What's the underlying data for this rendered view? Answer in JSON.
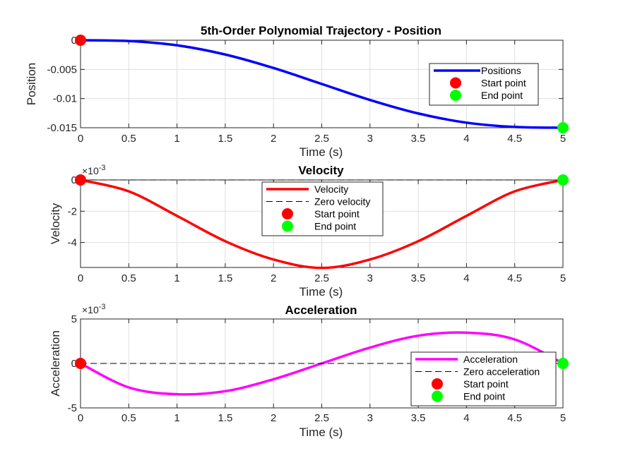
{
  "chart_data": [
    {
      "type": "line",
      "title": "5th-Order Polynomial Trajectory - Position",
      "xlabel": "Time (s)",
      "ylabel": "Position",
      "exponent_label": "",
      "xlim": [
        0,
        5
      ],
      "ylim": [
        -0.015,
        0
      ],
      "grid": true,
      "legend_position": "right",
      "x_ticks": [
        "0",
        "0.5",
        "1",
        "1.5",
        "2",
        "2.5",
        "3",
        "3.5",
        "4",
        "4.5",
        "5"
      ],
      "y_ticks": [
        {
          "value": 0,
          "label": "0"
        },
        {
          "value": -0.005,
          "label": "-0.005"
        },
        {
          "value": -0.01,
          "label": "-0.01"
        },
        {
          "value": -0.015,
          "label": "-0.015"
        }
      ],
      "series": [
        {
          "name": "Positions",
          "color": "#0000ff",
          "style": "solid",
          "x": [
            0,
            0.5,
            1,
            1.5,
            2,
            2.5,
            3,
            3.5,
            4,
            4.5,
            5
          ],
          "y": [
            0,
            -0.00013,
            -0.00087,
            -0.00245,
            -0.00476,
            -0.0075,
            -0.01024,
            -0.01255,
            -0.01413,
            -0.01487,
            -0.015
          ]
        }
      ],
      "markers": [
        {
          "name": "Start point",
          "color": "#ff0000",
          "x": 0,
          "y": 0
        },
        {
          "name": "End point",
          "color": "#00ff00",
          "x": 5,
          "y": -0.015
        }
      ]
    },
    {
      "type": "line",
      "title": "Velocity",
      "xlabel": "Time (s)",
      "ylabel": "Velocity",
      "exponent_label": "×10-3",
      "xlim": [
        0,
        5
      ],
      "ylim": [
        -5.6,
        0
      ],
      "grid": true,
      "legend_position": "top-center",
      "x_ticks": [
        "0",
        "0.5",
        "1",
        "1.5",
        "2",
        "2.5",
        "3",
        "3.5",
        "4",
        "4.5",
        "5"
      ],
      "y_ticks": [
        {
          "value": 0,
          "label": "0"
        },
        {
          "value": -2,
          "label": "-2"
        },
        {
          "value": -4,
          "label": "-4"
        }
      ],
      "series": [
        {
          "name": "Velocity",
          "color": "#ff0000",
          "style": "solid",
          "x": [
            0,
            0.5,
            1,
            1.5,
            2,
            2.5,
            3,
            3.5,
            4,
            4.5,
            5
          ],
          "y": [
            0,
            -0.73,
            -2.3,
            -3.92,
            -5.09,
            -5.63,
            -5.09,
            -3.92,
            -2.3,
            -0.73,
            0
          ]
        },
        {
          "name": "Zero velocity",
          "color": "#000000",
          "style": "dashed",
          "x": [
            0,
            5
          ],
          "y": [
            0,
            0
          ]
        }
      ],
      "markers": [
        {
          "name": "Start point",
          "color": "#ff0000",
          "x": 0,
          "y": 0
        },
        {
          "name": "End point",
          "color": "#00ff00",
          "x": 5,
          "y": 0
        }
      ]
    },
    {
      "type": "line",
      "title": "Acceleration",
      "xlabel": "Time (s)",
      "ylabel": "Acceleration",
      "exponent_label": "×10-3",
      "xlim": [
        0,
        5
      ],
      "ylim": [
        -5,
        5
      ],
      "grid": true,
      "legend_position": "bottom-right",
      "x_ticks": [
        "0",
        "0.5",
        "1",
        "1.5",
        "2",
        "2.5",
        "3",
        "3.5",
        "4",
        "4.5",
        "5"
      ],
      "y_ticks": [
        {
          "value": 5,
          "label": "5"
        },
        {
          "value": 0,
          "label": "0"
        },
        {
          "value": -5,
          "label": "-5"
        }
      ],
      "series": [
        {
          "name": "Acceleration",
          "color": "#ff00ff",
          "style": "solid",
          "x": [
            0,
            0.5,
            1,
            1.5,
            2,
            2.5,
            3,
            3.5,
            4,
            4.5,
            5
          ],
          "y": [
            0,
            -2.7,
            -3.46,
            -3.12,
            -1.78,
            0,
            1.78,
            3.12,
            3.46,
            2.7,
            0
          ]
        },
        {
          "name": "Zero acceleration",
          "color": "#000000",
          "style": "dashed",
          "x": [
            0,
            5
          ],
          "y": [
            0,
            0
          ]
        }
      ],
      "markers": [
        {
          "name": "Start point",
          "color": "#ff0000",
          "x": 0,
          "y": 0
        },
        {
          "name": "End point",
          "color": "#00ff00",
          "x": 5,
          "y": 0
        }
      ]
    }
  ]
}
